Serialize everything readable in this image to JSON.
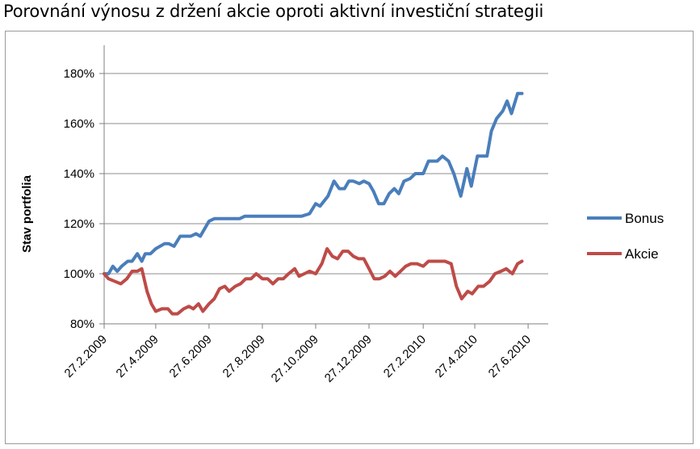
{
  "chart_data": {
    "type": "line",
    "title": "Porovnání výnosu z držení akcie oproti aktivní investiční strategii",
    "ylabel": "Stav portfolia",
    "xlabel": "",
    "ylim": [
      80,
      190
    ],
    "yticks": [
      80,
      100,
      120,
      140,
      160,
      180
    ],
    "ytick_labels": [
      "80%",
      "100%",
      "120%",
      "140%",
      "160%",
      "180%"
    ],
    "y_unit": "%",
    "grid": "horizontal",
    "legend_position": "right",
    "xlim": [
      "2009-02-27",
      "2010-07-20"
    ],
    "xticks": [
      "2009-02-27",
      "2009-04-27",
      "2009-06-27",
      "2009-08-27",
      "2009-10-27",
      "2009-12-27",
      "2010-02-27",
      "2010-04-27",
      "2010-06-27"
    ],
    "xtick_labels": [
      "27.2.2009",
      "27.4.2009",
      "27.6.2009",
      "27.8.2009",
      "27.10.2009",
      "27.12.2009",
      "27.2.2010",
      "27.4.2010",
      "27.6.2010"
    ],
    "series": [
      {
        "name": "Bonus",
        "color": "#4a7ebb",
        "points": [
          [
            "2009-02-27",
            100
          ],
          [
            "2009-03-04",
            100
          ],
          [
            "2009-03-09",
            103
          ],
          [
            "2009-03-14",
            101
          ],
          [
            "2009-03-19",
            103
          ],
          [
            "2009-03-26",
            105
          ],
          [
            "2009-03-31",
            105
          ],
          [
            "2009-04-06",
            108
          ],
          [
            "2009-04-11",
            105
          ],
          [
            "2009-04-15",
            108
          ],
          [
            "2009-04-21",
            108
          ],
          [
            "2009-04-27",
            110
          ],
          [
            "2009-05-07",
            112
          ],
          [
            "2009-05-12",
            112
          ],
          [
            "2009-05-18",
            111
          ],
          [
            "2009-05-25",
            115
          ],
          [
            "2009-06-01",
            115
          ],
          [
            "2009-06-06",
            115
          ],
          [
            "2009-06-12",
            116
          ],
          [
            "2009-06-17",
            115
          ],
          [
            "2009-06-27",
            121
          ],
          [
            "2009-07-03",
            122
          ],
          [
            "2009-07-08",
            122
          ],
          [
            "2009-07-14",
            122
          ],
          [
            "2009-07-20",
            122
          ],
          [
            "2009-07-26",
            122
          ],
          [
            "2009-08-01",
            122
          ],
          [
            "2009-08-07",
            123
          ],
          [
            "2009-08-13",
            123
          ],
          [
            "2009-08-27",
            123
          ],
          [
            "2009-09-08",
            123
          ],
          [
            "2009-09-19",
            123
          ],
          [
            "2009-10-01",
            123
          ],
          [
            "2009-10-11",
            123
          ],
          [
            "2009-10-20",
            124
          ],
          [
            "2009-10-27",
            128
          ],
          [
            "2009-11-01",
            127
          ],
          [
            "2009-11-10",
            131
          ],
          [
            "2009-11-17",
            137
          ],
          [
            "2009-11-23",
            134
          ],
          [
            "2009-11-29",
            134
          ],
          [
            "2009-12-04",
            137
          ],
          [
            "2009-12-09",
            137
          ],
          [
            "2009-12-16",
            136
          ],
          [
            "2009-12-21",
            137
          ],
          [
            "2009-12-27",
            136
          ],
          [
            "2010-01-01",
            133
          ],
          [
            "2010-01-07",
            128
          ],
          [
            "2010-01-13",
            128
          ],
          [
            "2010-01-19",
            132
          ],
          [
            "2010-01-25",
            134
          ],
          [
            "2010-01-30",
            132
          ],
          [
            "2010-02-05",
            137
          ],
          [
            "2010-02-12",
            138
          ],
          [
            "2010-02-18",
            140
          ],
          [
            "2010-02-27",
            140
          ],
          [
            "2010-03-05",
            145
          ],
          [
            "2010-03-10",
            145
          ],
          [
            "2010-03-15",
            145
          ],
          [
            "2010-03-21",
            147
          ],
          [
            "2010-03-28",
            145
          ],
          [
            "2010-04-03",
            140
          ],
          [
            "2010-04-11",
            131
          ],
          [
            "2010-04-18",
            142
          ],
          [
            "2010-04-23",
            135
          ],
          [
            "2010-04-30",
            147
          ],
          [
            "2010-05-06",
            147
          ],
          [
            "2010-05-11",
            147
          ],
          [
            "2010-05-16",
            157
          ],
          [
            "2010-05-22",
            162
          ],
          [
            "2010-05-29",
            165
          ],
          [
            "2010-06-03",
            169
          ],
          [
            "2010-06-08",
            164
          ],
          [
            "2010-06-15",
            172
          ],
          [
            "2010-06-20",
            172
          ]
        ]
      },
      {
        "name": "Akcie",
        "color": "#be4b48",
        "points": [
          [
            "2009-02-27",
            100
          ],
          [
            "2009-03-04",
            98
          ],
          [
            "2009-03-11",
            97
          ],
          [
            "2009-03-18",
            96
          ],
          [
            "2009-03-25",
            98
          ],
          [
            "2009-03-31",
            101
          ],
          [
            "2009-04-06",
            101
          ],
          [
            "2009-04-11",
            102
          ],
          [
            "2009-04-17",
            93
          ],
          [
            "2009-04-22",
            88
          ],
          [
            "2009-04-27",
            85
          ],
          [
            "2009-05-04",
            86
          ],
          [
            "2009-05-11",
            86
          ],
          [
            "2009-05-16",
            84
          ],
          [
            "2009-05-22",
            84
          ],
          [
            "2009-05-29",
            86
          ],
          [
            "2009-06-04",
            87
          ],
          [
            "2009-06-09",
            86
          ],
          [
            "2009-06-15",
            88
          ],
          [
            "2009-06-20",
            85
          ],
          [
            "2009-06-27",
            88
          ],
          [
            "2009-07-03",
            90
          ],
          [
            "2009-07-09",
            94
          ],
          [
            "2009-07-15",
            95
          ],
          [
            "2009-07-20",
            93
          ],
          [
            "2009-07-27",
            95
          ],
          [
            "2009-08-02",
            96
          ],
          [
            "2009-08-08",
            98
          ],
          [
            "2009-08-14",
            98
          ],
          [
            "2009-08-20",
            100
          ],
          [
            "2009-08-27",
            98
          ],
          [
            "2009-09-02",
            98
          ],
          [
            "2009-09-08",
            96
          ],
          [
            "2009-09-14",
            98
          ],
          [
            "2009-09-20",
            98
          ],
          [
            "2009-09-26",
            100
          ],
          [
            "2009-10-03",
            102
          ],
          [
            "2009-10-08",
            99
          ],
          [
            "2009-10-14",
            100
          ],
          [
            "2009-10-20",
            101
          ],
          [
            "2009-10-27",
            100
          ],
          [
            "2009-11-03",
            104
          ],
          [
            "2009-11-09",
            110
          ],
          [
            "2009-11-15",
            107
          ],
          [
            "2009-11-21",
            106
          ],
          [
            "2009-11-27",
            109
          ],
          [
            "2009-12-03",
            109
          ],
          [
            "2009-12-09",
            107
          ],
          [
            "2009-12-15",
            106
          ],
          [
            "2009-12-21",
            106
          ],
          [
            "2009-12-27",
            102
          ],
          [
            "2010-01-02",
            98
          ],
          [
            "2010-01-08",
            98
          ],
          [
            "2010-01-14",
            99
          ],
          [
            "2010-01-20",
            101
          ],
          [
            "2010-01-26",
            99
          ],
          [
            "2010-02-01",
            101
          ],
          [
            "2010-02-07",
            103
          ],
          [
            "2010-02-13",
            104
          ],
          [
            "2010-02-20",
            104
          ],
          [
            "2010-02-27",
            103
          ],
          [
            "2010-03-05",
            105
          ],
          [
            "2010-03-11",
            105
          ],
          [
            "2010-03-18",
            105
          ],
          [
            "2010-03-24",
            105
          ],
          [
            "2010-03-31",
            104
          ],
          [
            "2010-04-06",
            95
          ],
          [
            "2010-04-12",
            90
          ],
          [
            "2010-04-19",
            93
          ],
          [
            "2010-04-24",
            92
          ],
          [
            "2010-05-01",
            95
          ],
          [
            "2010-05-07",
            95
          ],
          [
            "2010-05-14",
            97
          ],
          [
            "2010-05-20",
            100
          ],
          [
            "2010-05-27",
            101
          ],
          [
            "2010-06-02",
            102
          ],
          [
            "2010-06-09",
            100
          ],
          [
            "2010-06-15",
            104
          ],
          [
            "2010-06-20",
            105
          ]
        ]
      }
    ]
  }
}
